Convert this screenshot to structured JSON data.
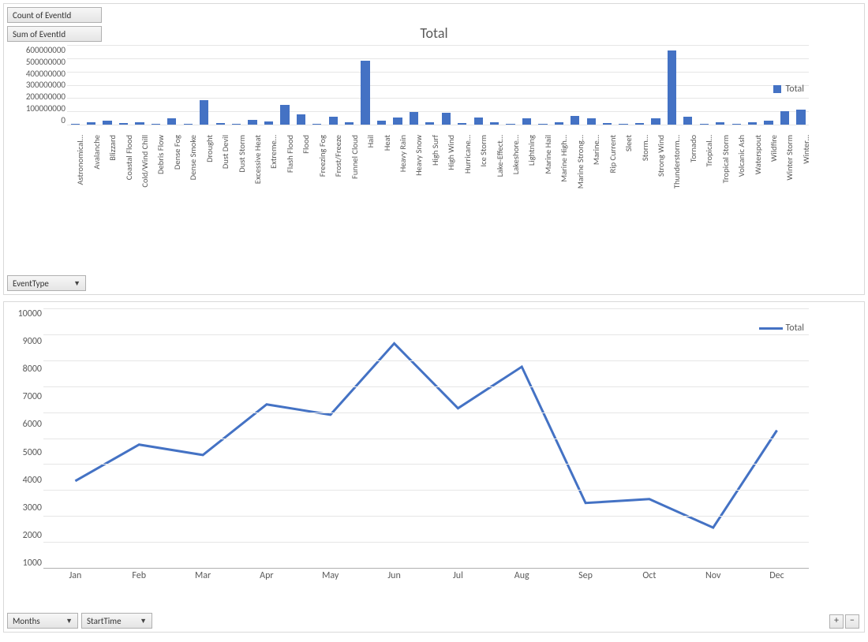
{
  "colors": {
    "series": "#4472c4",
    "gridline": "#e6e6e6",
    "axis": "#b0b0b0",
    "text": "#595959",
    "button_bg_top": "#f7f7f7",
    "button_bg_bottom": "#e5e5e5",
    "button_border": "#b0b0b0",
    "panel_border": "#d9d9d9",
    "background": "#ffffff"
  },
  "buttons": {
    "count_eventid": "Count of EventId",
    "sum_eventid": "Sum of EventId",
    "event_type": "EventType",
    "months": "Months",
    "start_time": "StartTime",
    "zoom_in": "+",
    "zoom_out": "−"
  },
  "bar_chart": {
    "type": "bar",
    "title": "Total",
    "title_fontsize": 18,
    "legend_label": "Total",
    "ylim": [
      0,
      600000000
    ],
    "ytick_step": 100000000,
    "ytick_labels": [
      "600000000",
      "500000000",
      "400000000",
      "300000000",
      "200000000",
      "100000000",
      "0"
    ],
    "bar_color": "#4472c4",
    "grid_color": "#e6e6e6",
    "label_fontsize": 10.5,
    "categories": [
      "Astronomical…",
      "Avalanche",
      "Blizzard",
      "Coastal Flood",
      "Cold/Wind Chill",
      "Debris Flow",
      "Dense Fog",
      "Dense Smoke",
      "Drought",
      "Dust Devil",
      "Dust Storm",
      "Excessive Heat",
      "Extreme…",
      "Flash Flood",
      "Flood",
      "Freezing Fog",
      "Frost/Freeze",
      "Funnel Cloud",
      "Hail",
      "Heat",
      "Heavy Rain",
      "Heavy Snow",
      "High Surf",
      "High Wind",
      "Hurricane…",
      "Ice Storm",
      "Lake-Effect…",
      "Lakeshore…",
      "Lightning",
      "Marine Hail",
      "Marine High…",
      "Marine Strong…",
      "Marine…",
      "Rip Current",
      "Sleet",
      "Storm…",
      "Strong Wind",
      "Thunderstorm…",
      "Tornado",
      "Tropical…",
      "Tropical Storm",
      "Volcanic Ash",
      "Waterspout",
      "Wildfire",
      "Winter Storm",
      "Winter…"
    ],
    "values": [
      8000000,
      18000000,
      28000000,
      12000000,
      18000000,
      8000000,
      50000000,
      5000000,
      185000000,
      10000000,
      8000000,
      35000000,
      25000000,
      150000000,
      75000000,
      5000000,
      60000000,
      20000000,
      480000000,
      30000000,
      55000000,
      95000000,
      20000000,
      90000000,
      10000000,
      55000000,
      20000000,
      5000000,
      50000000,
      5000000,
      15000000,
      65000000,
      50000000,
      12000000,
      5000000,
      10000000,
      45000000,
      560000000,
      58000000,
      8000000,
      20000000,
      5000000,
      20000000,
      30000000,
      100000000,
      115000000
    ]
  },
  "line_chart": {
    "type": "line",
    "legend_label": "Total",
    "line_color": "#4472c4",
    "line_width": 3,
    "grid_color": "#e6e6e6",
    "label_fontsize": 12,
    "ylim": [
      0,
      10000
    ],
    "ytick_step": 1000,
    "ytick_labels": [
      "10000",
      "9000",
      "8000",
      "7000",
      "6000",
      "5000",
      "4000",
      "3000",
      "2000",
      "1000"
    ],
    "categories": [
      "Jan",
      "Feb",
      "Mar",
      "Apr",
      "May",
      "Jun",
      "Jul",
      "Aug",
      "Sep",
      "Oct",
      "Nov",
      "Dec"
    ],
    "values": [
      3350,
      4750,
      4350,
      6300,
      5900,
      8650,
      6150,
      7750,
      2500,
      2650,
      1550,
      5300
    ]
  }
}
